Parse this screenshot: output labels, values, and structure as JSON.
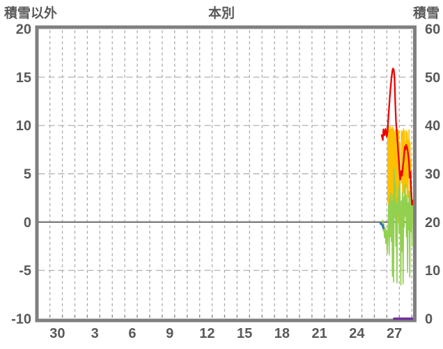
{
  "window": {
    "background": "#ffffff"
  },
  "chart_data": {
    "type": "line",
    "title": "本別",
    "left_axis": {
      "label": "積雪以外",
      "min": -10,
      "max": 20,
      "ticks": [
        20,
        15,
        10,
        5,
        0,
        -5,
        -10
      ]
    },
    "right_axis": {
      "label": "積雪",
      "min": 0,
      "max": 60,
      "ticks": [
        60,
        50,
        40,
        30,
        20,
        10,
        0
      ]
    },
    "x_axis": {
      "day_min": 0,
      "day_max": 30,
      "gridlines": {
        "first_day": 0.9,
        "step": 1,
        "count": 30
      },
      "labels": [
        [
          "30",
          1.5
        ],
        [
          "3",
          4.5
        ],
        [
          "6",
          7.5
        ],
        [
          "9",
          10.5
        ],
        [
          "12",
          13.5
        ],
        [
          "15",
          16.5
        ],
        [
          "18",
          19.5
        ],
        [
          "21",
          22.5
        ],
        [
          "24",
          25.5
        ],
        [
          "27",
          28.5
        ]
      ]
    },
    "grid": {
      "vertical_dashed": true,
      "horizontal_dashed_at": [
        15,
        10,
        5,
        -5
      ],
      "zero_line_at": 0
    },
    "colors": {
      "frame": "#7f7f7f",
      "grid": "#a9a9a9",
      "zero_line": "#7f7f7f",
      "text": "#595959"
    },
    "series": [
      {
        "name": "series-yellow-bars",
        "color": "#ffc000",
        "axis": "left",
        "type": "bars",
        "width": 1.8,
        "bars": [
          [
            27.98,
            9.9,
            2.0
          ],
          [
            28.05,
            10.0,
            0.2
          ],
          [
            28.13,
            9.6,
            1.0
          ],
          [
            28.21,
            9.9,
            -0.2
          ],
          [
            28.29,
            9.7,
            0.3
          ],
          [
            28.37,
            9.9,
            1.5
          ],
          [
            28.44,
            9.7,
            0.2
          ],
          [
            28.52,
            9.4,
            0.5
          ],
          [
            28.6,
            9.6,
            0.3
          ],
          [
            28.68,
            9.3,
            1.2
          ],
          [
            28.76,
            9.6,
            2.5
          ],
          [
            28.84,
            9.5,
            -0.1
          ],
          [
            28.93,
            8.2,
            0.4
          ],
          [
            29.07,
            9.5,
            4.0
          ],
          [
            29.16,
            9.4,
            2.0
          ],
          [
            29.24,
            9.7,
            3.0
          ],
          [
            29.31,
            9.5,
            1.0
          ],
          [
            29.38,
            8.4,
            2.2
          ],
          [
            29.45,
            9.5,
            3.5
          ],
          [
            29.53,
            9.3,
            1.5
          ],
          [
            29.6,
            8.6,
            2.5
          ],
          [
            29.68,
            9.6,
            4.5
          ],
          [
            29.75,
            8.3,
            3.0
          ],
          [
            29.82,
            6.5,
            3.0
          ]
        ]
      },
      {
        "name": "series-green-line",
        "color": "#92d050",
        "axis": "left",
        "type": "line",
        "width": 1.7,
        "points": [
          [
            27.57,
            0.2
          ],
          [
            27.61,
            -0.9
          ],
          [
            27.66,
            -0.2
          ],
          [
            27.71,
            -1.6
          ],
          [
            27.76,
            -0.6
          ],
          [
            27.82,
            -2.2
          ],
          [
            27.88,
            -0.8
          ],
          [
            27.93,
            -3.2
          ],
          [
            27.99,
            -1.0
          ],
          [
            28.04,
            1.8
          ],
          [
            28.09,
            -3.4
          ],
          [
            28.13,
            2.6
          ],
          [
            28.18,
            -1.5
          ],
          [
            28.22,
            3.0
          ],
          [
            28.27,
            -2.0
          ],
          [
            28.31,
            2.2
          ],
          [
            28.35,
            -5.6
          ],
          [
            28.4,
            2.8
          ],
          [
            28.44,
            -6.2
          ],
          [
            28.49,
            5.5
          ],
          [
            28.53,
            0.5
          ],
          [
            28.58,
            4.1
          ],
          [
            28.62,
            -2.5
          ],
          [
            28.67,
            2.0
          ],
          [
            28.71,
            -6.3
          ],
          [
            28.76,
            2.5
          ],
          [
            28.8,
            1.0
          ],
          [
            28.85,
            3.5
          ],
          [
            28.89,
            -1.2
          ],
          [
            28.93,
            5.0
          ],
          [
            28.98,
            0.8
          ],
          [
            29.02,
            -6.5
          ],
          [
            29.07,
            2.2
          ],
          [
            29.11,
            -3.0
          ],
          [
            29.16,
            3.0
          ],
          [
            29.2,
            -6.4
          ],
          [
            29.25,
            2.6
          ],
          [
            29.29,
            -0.5
          ],
          [
            29.34,
            3.9
          ],
          [
            29.38,
            0.6
          ],
          [
            29.43,
            2.8
          ],
          [
            29.47,
            -1.5
          ],
          [
            29.51,
            2.4
          ],
          [
            29.56,
            -5.2
          ],
          [
            29.6,
            2.0
          ],
          [
            29.65,
            -0.8
          ],
          [
            29.69,
            3.2
          ],
          [
            29.74,
            -5.7
          ],
          [
            29.78,
            4.6
          ],
          [
            29.83,
            -1.0
          ],
          [
            29.87,
            2.6
          ],
          [
            29.92,
            -2.5
          ],
          [
            29.96,
            2.3
          ]
        ]
      },
      {
        "name": "series-red-line",
        "color": "#ee0000",
        "axis": "left",
        "type": "line",
        "width": 2.3,
        "points": [
          [
            27.48,
            9.0
          ],
          [
            27.58,
            8.5
          ],
          [
            27.63,
            9.6
          ],
          [
            27.71,
            9.0
          ],
          [
            27.8,
            9.65
          ],
          [
            27.89,
            8.85
          ],
          [
            27.95,
            9.3
          ],
          [
            28.04,
            11.2
          ],
          [
            28.15,
            13.2
          ],
          [
            28.27,
            14.9
          ],
          [
            28.35,
            15.7
          ],
          [
            28.4,
            15.9
          ],
          [
            28.46,
            15.75
          ],
          [
            28.52,
            14.8
          ],
          [
            28.57,
            12.5
          ],
          [
            28.63,
            10.4
          ],
          [
            28.7,
            9.4
          ],
          [
            28.78,
            7.8
          ],
          [
            28.88,
            6.1
          ],
          [
            28.93,
            4.9
          ],
          [
            28.97,
            4.4
          ],
          [
            29.06,
            5.3
          ],
          [
            29.11,
            4.8
          ],
          [
            29.25,
            6.5
          ],
          [
            29.34,
            7.8
          ],
          [
            29.39,
            7.5
          ],
          [
            29.45,
            8.0
          ],
          [
            29.53,
            7.7
          ],
          [
            29.62,
            6.9
          ],
          [
            29.68,
            6.1
          ],
          [
            29.73,
            4.6
          ],
          [
            29.79,
            5.2
          ],
          [
            29.84,
            3.6
          ],
          [
            29.88,
            2.5
          ],
          [
            29.92,
            1.8
          ],
          [
            29.95,
            1.9
          ],
          [
            29.97,
            2.2
          ]
        ]
      },
      {
        "name": "series-blue-segment",
        "color": "#2e75b6",
        "axis": "left",
        "type": "line",
        "width": 3.2,
        "points": [
          [
            27.4,
            -0.15
          ],
          [
            27.55,
            -0.3
          ],
          [
            27.62,
            -0.6
          ]
        ]
      },
      {
        "name": "series-purple-snow-depth",
        "color": "#7030a0",
        "axis": "right",
        "type": "line",
        "width": 3.5,
        "points": [
          [
            28.49,
            0
          ],
          [
            30.0,
            0
          ]
        ]
      }
    ]
  }
}
